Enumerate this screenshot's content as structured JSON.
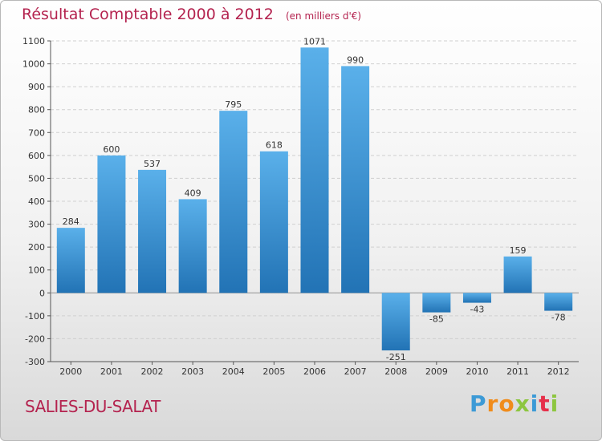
{
  "title": {
    "main": "Résultat Comptable 2000 à 2012",
    "unit": "(en milliers d'€)"
  },
  "commune": "SALIES-DU-SALAT",
  "logo": {
    "text": "Proxiti",
    "letters": [
      {
        "ch": "P",
        "color": "#3c9ad6"
      },
      {
        "ch": "r",
        "color": "#f08c1c"
      },
      {
        "ch": "o",
        "color": "#f08c1c"
      },
      {
        "ch": "x",
        "color": "#8dc63f"
      },
      {
        "ch": "i",
        "color": "#3c9ad6"
      },
      {
        "ch": "t",
        "color": "#e6304a"
      },
      {
        "ch": "i",
        "color": "#8dc63f"
      }
    ]
  },
  "colors": {
    "bar_light": "#5ab0ea",
    "bar_dark": "#2273b5",
    "grid": "#d0d0d0",
    "axis": "#555555",
    "title": "#b4234f"
  },
  "chart_data": {
    "type": "bar",
    "title": "Résultat Comptable 2000 à 2012",
    "ylabel": "en milliers d'€",
    "categories": [
      "2000",
      "2001",
      "2002",
      "2003",
      "2004",
      "2005",
      "2006",
      "2007",
      "2008",
      "2009",
      "2010",
      "2011",
      "2012"
    ],
    "values": [
      284,
      600,
      537,
      409,
      795,
      618,
      1071,
      990,
      -251,
      -85,
      -43,
      159,
      -78
    ],
    "ylim": [
      -300,
      1100
    ],
    "yticks": [
      1100,
      1000,
      900,
      800,
      700,
      600,
      500,
      400,
      300,
      200,
      100,
      0,
      -100,
      -200,
      -300
    ],
    "grid": true
  }
}
